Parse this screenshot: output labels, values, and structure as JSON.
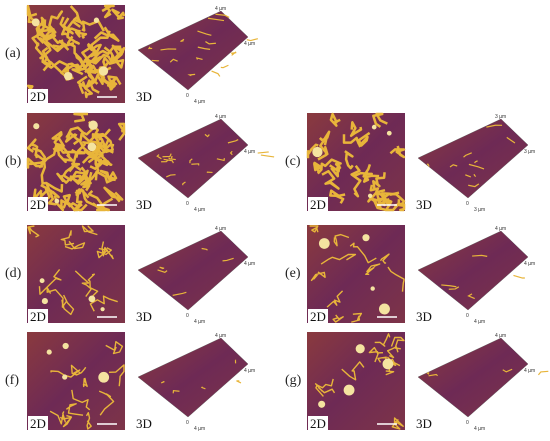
{
  "panels": [
    {
      "label": "(a)",
      "label_2d": "2D",
      "label_3d": "3D",
      "axis_labels": [
        "4 µm",
        "4 µm",
        "0",
        "4 µm"
      ]
    },
    {
      "label": "(b)",
      "label_2d": "2D",
      "label_3d": "3D",
      "axis_labels": [
        "4 µm",
        "4 µm",
        "0",
        "4 µm"
      ]
    },
    {
      "label": "(c)",
      "label_2d": "2D",
      "label_3d": "3D",
      "axis_labels": [
        "3 µm",
        "3 µm",
        "0",
        "3 µm"
      ]
    },
    {
      "label": "(d)",
      "label_2d": "2D",
      "label_3d": "3D",
      "axis_labels": [
        "4 µm",
        "4 µm",
        "0",
        "4 µm"
      ]
    },
    {
      "label": "(e)",
      "label_2d": "2D",
      "label_3d": "3D",
      "axis_labels": [
        "4 µm",
        "4 µm",
        "0",
        "4 µm"
      ]
    },
    {
      "label": "(f)",
      "label_2d": "2D",
      "label_3d": "3D",
      "axis_labels": [
        "4 µm",
        "4 µm",
        "0",
        "4 µm"
      ]
    },
    {
      "label": "(g)",
      "label_2d": "2D",
      "label_3d": "3D",
      "axis_labels": [
        "4 µm",
        "4 µm",
        "0",
        "4 µm"
      ]
    }
  ]
}
